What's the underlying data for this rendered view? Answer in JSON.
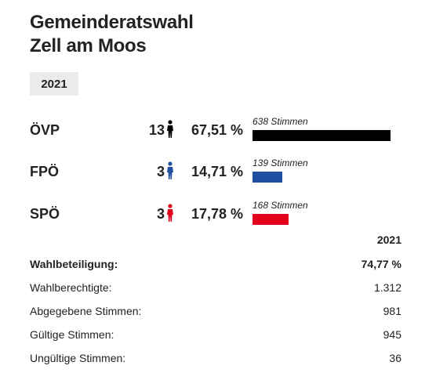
{
  "title_line1": "Gemeinderatswahl",
  "title_line2": "Zell am Moos",
  "year_tab": "2021",
  "chart_data": {
    "type": "bar",
    "categories": [
      "ÖVP",
      "FPÖ",
      "SPÖ"
    ],
    "seats": [
      13,
      3,
      3
    ],
    "percentages": [
      "67,51 %",
      "14,71 %",
      "17,78 %"
    ],
    "values": [
      638,
      139,
      168
    ],
    "vote_labels": [
      "638 Stimmen",
      "139 Stimmen",
      "168 Stimmen"
    ],
    "colors": [
      "#000000",
      "#1f4fa3",
      "#e3001b"
    ],
    "xlim": [
      0,
      638
    ]
  },
  "stats": {
    "header": "2021",
    "rows": [
      {
        "label": "Wahlbeteiligung:",
        "value": "74,77 %",
        "bold": true
      },
      {
        "label": "Wahlberechtigte:",
        "value": "1.312",
        "bold": false
      },
      {
        "label": "Abgegebene Stimmen:",
        "value": "981",
        "bold": false
      },
      {
        "label": "Gültige Stimmen:",
        "value": "945",
        "bold": false
      },
      {
        "label": "Ungültige Stimmen:",
        "value": "36",
        "bold": false
      }
    ]
  }
}
